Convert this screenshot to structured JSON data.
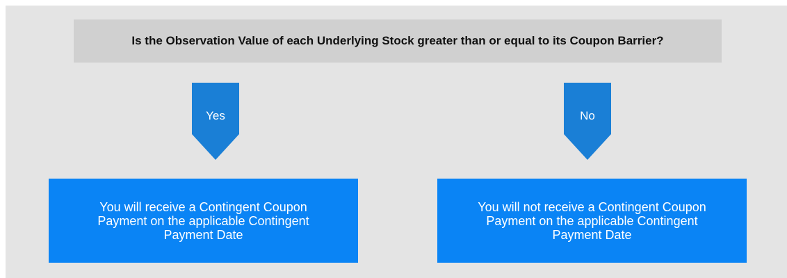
{
  "question": "Is the Observation Value of each Underlying Stock greater than or equal to its Coupon Barrier?",
  "branches": [
    {
      "label": "Yes",
      "outcome": "You will receive a Contingent Coupon Payment on the applicable Contingent Payment Date"
    },
    {
      "label": "No",
      "outcome": "You will not receive a Contingent Coupon Payment on the applicable Contingent Payment Date"
    }
  ]
}
